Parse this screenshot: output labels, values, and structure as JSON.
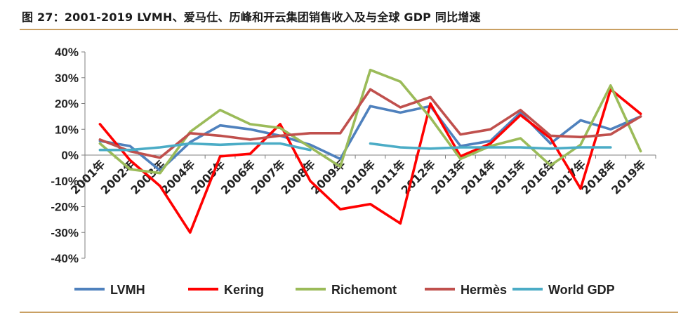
{
  "figure": {
    "title": "图 27：2001-2019 LVMH、爱马仕、历峰和开云集团销售收入及与全球 GDP 同比增速"
  },
  "chart_data": {
    "type": "line",
    "categories": [
      "2001年",
      "2002年",
      "2003年",
      "2004年",
      "2005年",
      "2006年",
      "2007年",
      "2008年",
      "2009年",
      "2010年",
      "2011年",
      "2012年",
      "2013年",
      "2014年",
      "2015年",
      "2016年",
      "2017年",
      "2018年",
      "2019年"
    ],
    "y_tick_labels": [
      "40%",
      "30%",
      "20%",
      "10%",
      "0%",
      "-10%",
      "-20%",
      "-30%",
      "-40%"
    ],
    "ylim": [
      -40,
      40
    ],
    "y_step": 10,
    "grid": false,
    "legend_position": "bottom",
    "series": [
      {
        "name": "LVMH",
        "color": "#4f81bd",
        "values": [
          5.5,
          3.5,
          -6,
          5,
          11.5,
          10,
          7.5,
          4,
          -1.5,
          19,
          16.5,
          19,
          3.5,
          5.5,
          16.5,
          4.5,
          13.5,
          10,
          15
        ]
      },
      {
        "name": "Kering",
        "color": "#ff0000",
        "values": [
          12,
          -2,
          -12,
          -30,
          -0.5,
          0.5,
          12,
          -10,
          -21,
          -19,
          -26.5,
          20,
          -0.5,
          4.5,
          15.5,
          6.5,
          -13,
          25.5,
          16
        ]
      },
      {
        "name": "Richemont",
        "color": "#9bbb59",
        "values": [
          4.5,
          -5.5,
          -7,
          9,
          17.5,
          12,
          10.5,
          3,
          -4.5,
          33,
          28.5,
          14.5,
          -1.5,
          3.5,
          6.5,
          -4,
          4,
          27,
          1.5
        ]
      },
      {
        "name": "Hermès",
        "color": "#c0504d",
        "values": [
          6,
          1.5,
          -1,
          8.5,
          7.5,
          6,
          7.5,
          8.5,
          8.5,
          25.5,
          18.5,
          22.5,
          8,
          10,
          17.5,
          7.5,
          7,
          8,
          15
        ]
      },
      {
        "name": "World GDP",
        "color": "#4bacc6",
        "values": [
          2,
          2,
          3,
          4.5,
          4,
          4.5,
          4.5,
          2,
          null,
          4.5,
          3,
          2.5,
          3,
          3,
          3,
          2.5,
          3,
          3,
          null
        ]
      }
    ]
  }
}
